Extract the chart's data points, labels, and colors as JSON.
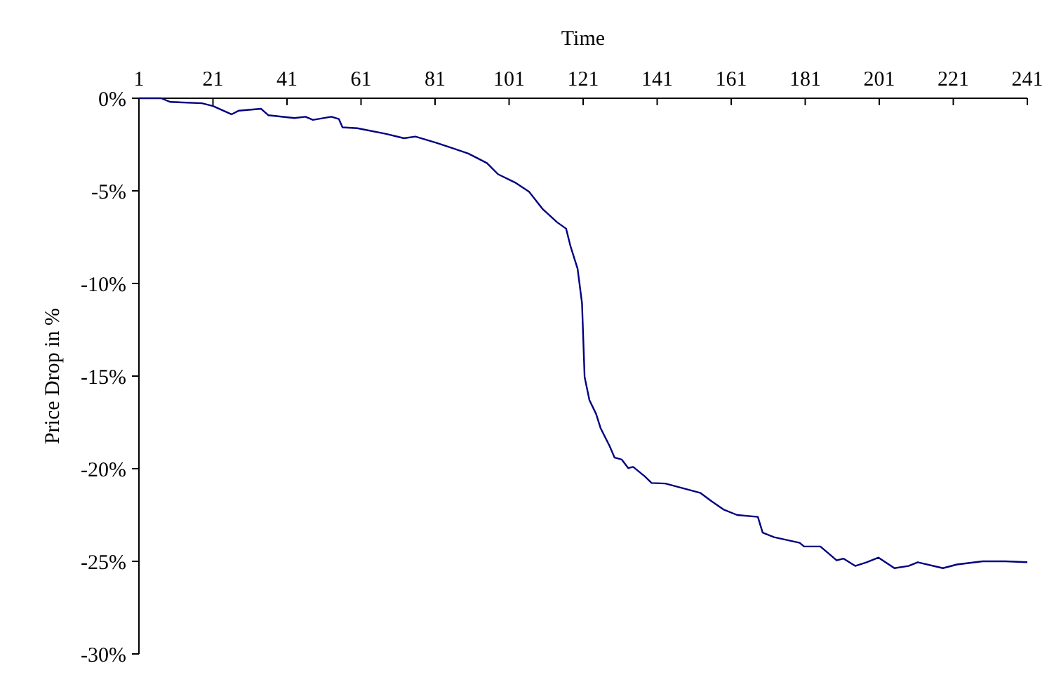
{
  "chart_data": {
    "type": "line",
    "xlabel": "Time",
    "ylabel": "Price Drop in %",
    "xlim": [
      1,
      241
    ],
    "xticks": [
      1,
      21,
      41,
      61,
      81,
      101,
      121,
      141,
      161,
      181,
      201,
      221,
      241
    ],
    "ylim": [
      -30,
      0
    ],
    "yticks": [
      {
        "value": 0,
        "label": "0%"
      },
      {
        "value": -5,
        "label": "-5%"
      },
      {
        "value": -10,
        "label": "-10%"
      },
      {
        "value": -15,
        "label": "-15%"
      },
      {
        "value": -20,
        "label": "-20%"
      },
      {
        "value": -25,
        "label": "-25%"
      },
      {
        "value": -30,
        "label": "-30%"
      }
    ],
    "grid": false,
    "series": [
      {
        "color": "#000080",
        "x": [
          1,
          7,
          9.5,
          18,
          21,
          26,
          28,
          34,
          36,
          43,
          46,
          48,
          53,
          55,
          56,
          60,
          67.6,
          72.6,
          75.7,
          81.4,
          86.4,
          90,
          95,
          98,
          102.6,
          106.4,
          110,
          114,
          116.4,
          117.6,
          119.5,
          120.7,
          121.4,
          122.7,
          124.5,
          125.7,
          128.2,
          129.5,
          131.4,
          133.2,
          134.5,
          137.6,
          139.5,
          143.2,
          152.6,
          155.8,
          158.9,
          162.6,
          168.2,
          169.5,
          172.6,
          179.5,
          180.7,
          185.1,
          189.5,
          191.3,
          194.5,
          197.6,
          200.8,
          205.1,
          208.9,
          211.4,
          218.2,
          222,
          228.9,
          235.1,
          241
        ],
        "values": [
          0,
          0,
          -0.2,
          -0.27,
          -0.42,
          -0.87,
          -0.67,
          -0.57,
          -0.92,
          -1.07,
          -1,
          -1.17,
          -1,
          -1.12,
          -1.57,
          -1.62,
          -1.92,
          -2.16,
          -2.07,
          -2.41,
          -2.74,
          -2.99,
          -3.5,
          -4.1,
          -4.55,
          -5.05,
          -5.97,
          -6.7,
          -7.04,
          -8,
          -9.2,
          -11.07,
          -15.05,
          -16.3,
          -17.04,
          -17.8,
          -18.8,
          -19.4,
          -19.5,
          -19.97,
          -19.9,
          -20.4,
          -20.77,
          -20.8,
          -21.3,
          -21.77,
          -22.2,
          -22.5,
          -22.6,
          -23.45,
          -23.7,
          -24,
          -24.2,
          -24.2,
          -24.95,
          -24.85,
          -25.25,
          -25.05,
          -24.8,
          -25.37,
          -25.25,
          -25.05,
          -25.37,
          -25.17,
          -25,
          -25,
          -25.05
        ]
      }
    ]
  }
}
